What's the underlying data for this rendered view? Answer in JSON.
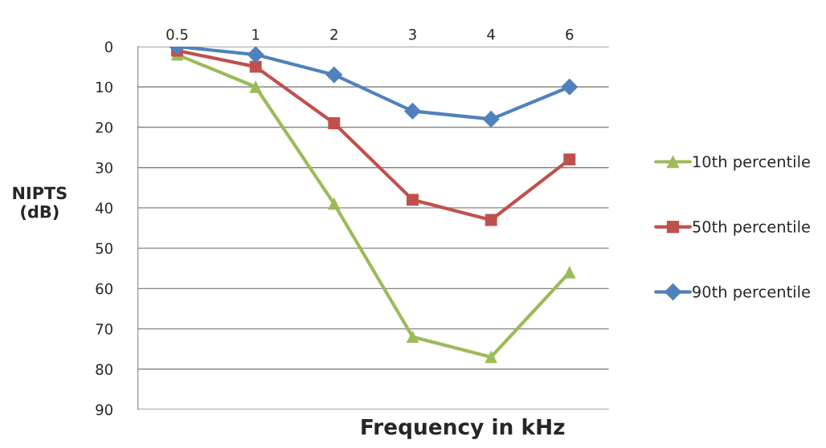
{
  "chart_data": {
    "type": "line",
    "xlabel": "Frequency in kHz",
    "ylabel": "NIPTS\n(dB)",
    "categories": [
      "0.5",
      "1",
      "2",
      "3",
      "4",
      "6"
    ],
    "series": [
      {
        "name": "10th percentile",
        "color": "#9bbb59",
        "marker": "triangle",
        "values": [
          2,
          10,
          39,
          72,
          77,
          56
        ]
      },
      {
        "name": "50th percentile",
        "color": "#c0504d",
        "marker": "square",
        "values": [
          1,
          5,
          19,
          38,
          43,
          28
        ]
      },
      {
        "name": "90th percentile",
        "color": "#4f81bd",
        "marker": "diamond",
        "values": [
          0,
          2,
          7,
          16,
          18,
          10
        ]
      }
    ],
    "ylim": [
      90,
      0
    ],
    "yticks": [
      0,
      10,
      20,
      30,
      40,
      50,
      60,
      70,
      80,
      90
    ],
    "grid": "y",
    "legend": "right",
    "line_style": "solid"
  }
}
